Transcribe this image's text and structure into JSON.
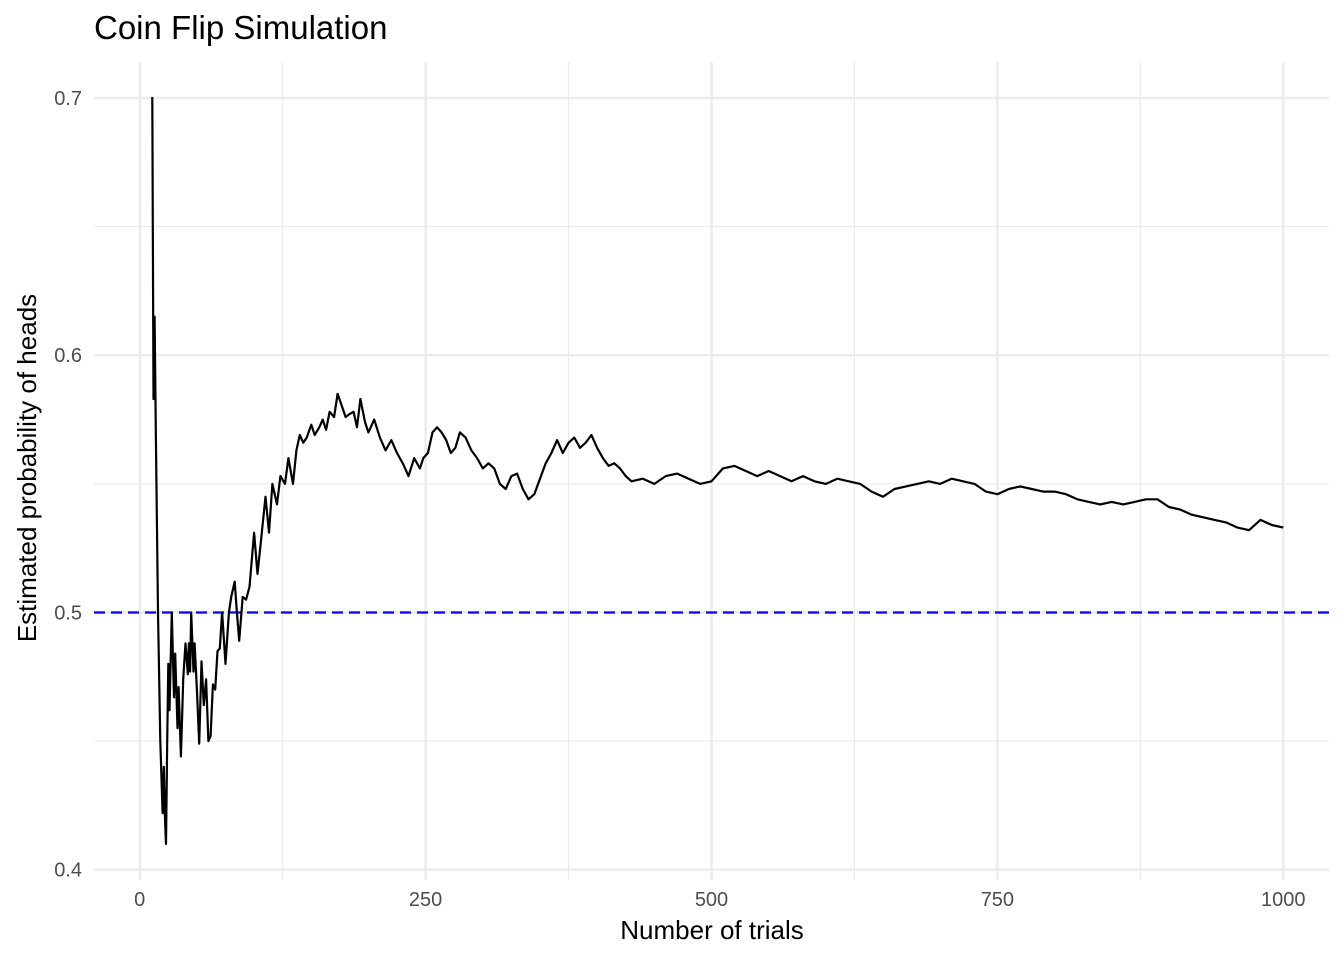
{
  "chart_data": {
    "type": "line",
    "title": "Coin Flip Simulation",
    "xlabel": "Number of trials",
    "ylabel": "Estimated probability of heads",
    "xlim": [
      -40,
      1040
    ],
    "ylim": [
      0.396,
      0.714
    ],
    "x_ticks": [
      0,
      250,
      500,
      750,
      1000
    ],
    "x_tick_labels": [
      "0",
      "250",
      "500",
      "750",
      "1000"
    ],
    "x_minor_ticks": [
      125,
      375,
      625,
      875
    ],
    "y_ticks": [
      0.4,
      0.5,
      0.6,
      0.7
    ],
    "y_tick_labels": [
      "0.4",
      "0.5",
      "0.6",
      "0.7"
    ],
    "y_minor_ticks": [
      0.45,
      0.55,
      0.65
    ],
    "grid": true,
    "legend": "none",
    "reference_line": {
      "y": 0.5,
      "style": "dashed",
      "color": "#0000ff"
    },
    "series": [
      {
        "color": "#000000",
        "x": [
          10,
          11,
          12,
          13,
          14,
          16,
          18,
          20,
          21,
          22,
          23,
          24,
          25,
          26,
          27,
          28,
          29,
          30,
          31,
          32,
          33,
          34,
          35,
          36,
          37,
          38,
          40,
          42,
          43,
          44,
          45,
          46,
          47,
          48,
          50,
          52,
          54,
          56,
          58,
          60,
          62,
          64,
          66,
          68,
          70,
          72,
          75,
          78,
          80,
          83,
          85,
          87,
          90,
          93,
          96,
          100,
          103,
          106,
          110,
          113,
          116,
          120,
          123,
          127,
          130,
          134,
          137,
          140,
          143,
          146,
          150,
          153,
          157,
          160,
          163,
          166,
          170,
          173,
          177,
          180,
          183,
          187,
          190,
          193,
          197,
          200,
          205,
          210,
          215,
          220,
          225,
          230,
          235,
          240,
          245,
          248,
          252,
          256,
          260,
          264,
          268,
          272,
          276,
          280,
          285,
          290,
          295,
          300,
          305,
          310,
          315,
          320,
          325,
          330,
          335,
          340,
          345,
          350,
          355,
          360,
          365,
          370,
          375,
          380,
          385,
          390,
          395,
          400,
          405,
          410,
          415,
          420,
          425,
          430,
          440,
          450,
          460,
          470,
          480,
          490,
          500,
          510,
          520,
          530,
          540,
          550,
          560,
          570,
          580,
          590,
          600,
          610,
          620,
          630,
          640,
          650,
          660,
          670,
          680,
          690,
          700,
          710,
          720,
          730,
          740,
          750,
          760,
          770,
          780,
          790,
          800,
          810,
          820,
          830,
          840,
          850,
          860,
          870,
          880,
          890,
          900,
          910,
          920,
          930,
          940,
          950,
          960,
          970,
          980,
          990,
          1000
        ],
        "y": [
          0.7,
          0.7,
          0.583,
          0.615,
          0.571,
          0.5,
          0.45,
          0.422,
          0.44,
          0.421,
          0.41,
          0.45,
          0.48,
          0.462,
          0.48,
          0.5,
          0.483,
          0.467,
          0.484,
          0.47,
          0.455,
          0.471,
          0.457,
          0.444,
          0.459,
          0.474,
          0.488,
          0.476,
          0.488,
          0.477,
          0.5,
          0.489,
          0.477,
          0.488,
          0.47,
          0.449,
          0.481,
          0.464,
          0.474,
          0.45,
          0.452,
          0.472,
          0.47,
          0.485,
          0.486,
          0.5,
          0.48,
          0.5,
          0.506,
          0.512,
          0.5,
          0.489,
          0.506,
          0.505,
          0.51,
          0.531,
          0.515,
          0.528,
          0.545,
          0.531,
          0.55,
          0.542,
          0.553,
          0.55,
          0.56,
          0.55,
          0.563,
          0.569,
          0.566,
          0.568,
          0.573,
          0.569,
          0.572,
          0.575,
          0.571,
          0.578,
          0.576,
          0.585,
          0.58,
          0.576,
          0.577,
          0.578,
          0.572,
          0.583,
          0.574,
          0.57,
          0.575,
          0.568,
          0.563,
          0.567,
          0.562,
          0.558,
          0.553,
          0.56,
          0.556,
          0.56,
          0.562,
          0.57,
          0.572,
          0.57,
          0.567,
          0.562,
          0.564,
          0.57,
          0.568,
          0.563,
          0.56,
          0.556,
          0.558,
          0.556,
          0.55,
          0.548,
          0.553,
          0.554,
          0.548,
          0.544,
          0.546,
          0.552,
          0.558,
          0.562,
          0.567,
          0.562,
          0.566,
          0.568,
          0.564,
          0.566,
          0.569,
          0.564,
          0.56,
          0.557,
          0.558,
          0.556,
          0.553,
          0.551,
          0.552,
          0.55,
          0.553,
          0.554,
          0.552,
          0.55,
          0.551,
          0.556,
          0.557,
          0.555,
          0.553,
          0.555,
          0.553,
          0.551,
          0.553,
          0.551,
          0.55,
          0.552,
          0.551,
          0.55,
          0.547,
          0.545,
          0.548,
          0.549,
          0.55,
          0.551,
          0.55,
          0.552,
          0.551,
          0.55,
          0.547,
          0.546,
          0.548,
          0.549,
          0.548,
          0.547,
          0.547,
          0.546,
          0.544,
          0.543,
          0.542,
          0.543,
          0.542,
          0.543,
          0.544,
          0.544,
          0.541,
          0.54,
          0.538,
          0.537,
          0.536,
          0.535,
          0.533,
          0.532,
          0.536,
          0.534,
          0.533
        ]
      }
    ]
  }
}
